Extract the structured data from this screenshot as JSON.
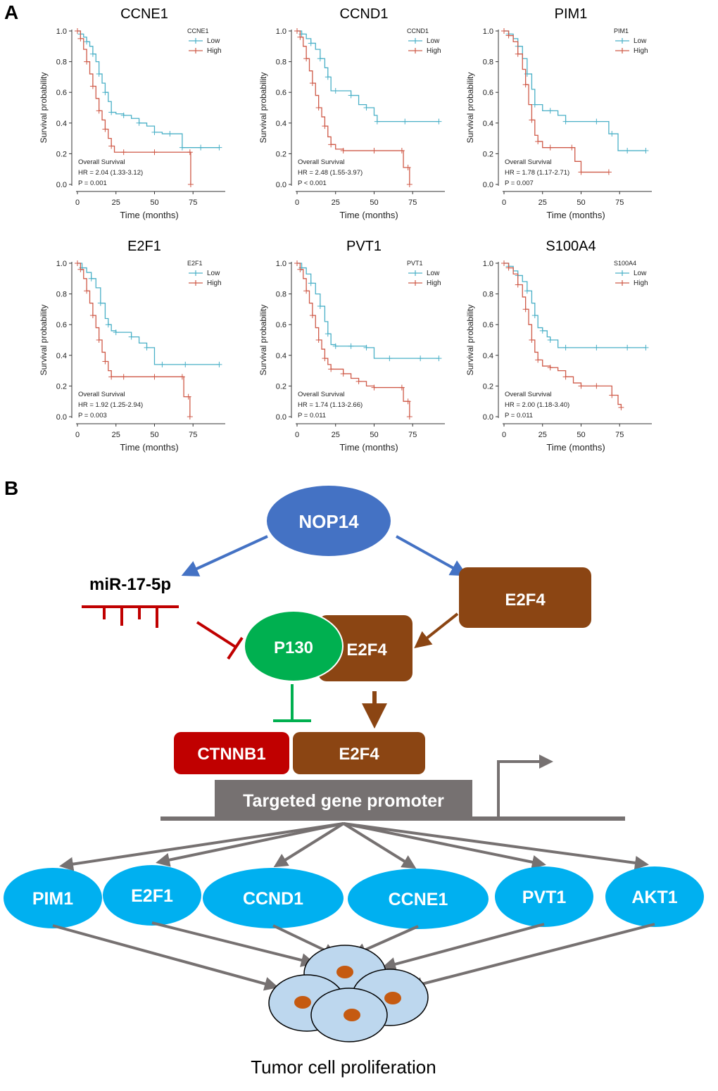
{
  "panel_labels": {
    "a": "A",
    "b": "B"
  },
  "colors": {
    "low": "#4ab0c7",
    "high": "#cf5a48",
    "axis": "#333333",
    "blue_node": "#4472c4",
    "brown": "#8b4513",
    "red": "#c00000",
    "green": "#00b050",
    "cyan": "#00b0f0",
    "gray": "#767171",
    "cell_fill": "#bdd7ee",
    "nucleus": "#c55a11"
  },
  "chart_data": [
    {
      "type": "line",
      "title": "CCNE1",
      "xlabel": "Time (months)",
      "ylabel": "Survival probability",
      "xlim": [
        0,
        95
      ],
      "ylim": [
        0,
        1.0
      ],
      "xticks": [
        "0",
        "25",
        "50",
        "75"
      ],
      "yticks": [
        "0.0",
        "0.2",
        "0.4",
        "0.6",
        "0.8",
        "1.0"
      ],
      "legend_title": "CCNE1",
      "stats": [
        "Overall Survival",
        "HR = 2.04 (1.33-3.12)",
        "P = 0.001"
      ],
      "series": [
        {
          "name": "Low",
          "x": [
            0,
            2,
            4,
            6,
            8,
            10,
            12,
            14,
            16,
            18,
            20,
            22,
            25,
            30,
            35,
            40,
            45,
            50,
            55,
            60,
            65,
            68,
            72,
            80,
            92
          ],
          "y": [
            1.0,
            0.98,
            0.96,
            0.93,
            0.9,
            0.85,
            0.8,
            0.72,
            0.66,
            0.6,
            0.54,
            0.47,
            0.46,
            0.45,
            0.43,
            0.4,
            0.38,
            0.34,
            0.33,
            0.33,
            0.33,
            0.24,
            0.24,
            0.24,
            0.24
          ]
        },
        {
          "name": "High",
          "x": [
            0,
            2,
            4,
            6,
            8,
            10,
            12,
            14,
            16,
            18,
            20,
            22,
            24,
            30,
            40,
            50,
            60,
            73,
            73.5
          ],
          "y": [
            1.0,
            0.95,
            0.88,
            0.8,
            0.72,
            0.64,
            0.56,
            0.48,
            0.42,
            0.36,
            0.3,
            0.25,
            0.21,
            0.21,
            0.21,
            0.21,
            0.21,
            0.21,
            0.0
          ]
        }
      ]
    },
    {
      "type": "line",
      "title": "CCND1",
      "xlabel": "Time (months)",
      "ylabel": "Survival probability",
      "xlim": [
        0,
        95
      ],
      "ylim": [
        0,
        1.0
      ],
      "xticks": [
        "0",
        "25",
        "50",
        "75"
      ],
      "yticks": [
        "0.0",
        "0.2",
        "0.4",
        "0.6",
        "0.8",
        "1.0"
      ],
      "legend_title": "CCND1",
      "stats": [
        "Overall Survival",
        "HR = 2.48 (1.55-3.97)",
        "P < 0.001"
      ],
      "series": [
        {
          "name": "Low",
          "x": [
            0,
            3,
            6,
            9,
            12,
            15,
            18,
            20,
            22,
            25,
            30,
            35,
            40,
            45,
            50,
            52,
            60,
            70,
            80,
            92
          ],
          "y": [
            1.0,
            0.98,
            0.95,
            0.92,
            0.88,
            0.82,
            0.76,
            0.7,
            0.61,
            0.61,
            0.61,
            0.58,
            0.52,
            0.5,
            0.45,
            0.41,
            0.41,
            0.41,
            0.41,
            0.41
          ]
        },
        {
          "name": "High",
          "x": [
            0,
            2,
            4,
            6,
            8,
            10,
            12,
            14,
            16,
            18,
            20,
            22,
            25,
            30,
            40,
            50,
            60,
            68,
            69,
            72,
            73
          ],
          "y": [
            1.0,
            0.96,
            0.9,
            0.82,
            0.74,
            0.66,
            0.58,
            0.5,
            0.44,
            0.38,
            0.31,
            0.26,
            0.23,
            0.22,
            0.22,
            0.22,
            0.22,
            0.22,
            0.11,
            0.11,
            0.0
          ]
        }
      ]
    },
    {
      "type": "line",
      "title": "PIM1",
      "xlabel": "Time (months)",
      "ylabel": "Survival probability",
      "xlim": [
        0,
        95
      ],
      "ylim": [
        0,
        1.0
      ],
      "xticks": [
        "0",
        "25",
        "50",
        "75"
      ],
      "yticks": [
        "0.0",
        "0.2",
        "0.4",
        "0.6",
        "0.8",
        "1.0"
      ],
      "legend_title": "PIM1",
      "stats": [
        "Overall Survival",
        "HR = 1.78 (1.17-2.71)",
        "P = 0.007"
      ],
      "series": [
        {
          "name": "Low",
          "x": [
            0,
            3,
            6,
            9,
            12,
            15,
            18,
            20,
            25,
            30,
            35,
            40,
            50,
            60,
            68,
            70,
            74,
            80,
            92
          ],
          "y": [
            1.0,
            0.98,
            0.95,
            0.9,
            0.82,
            0.72,
            0.62,
            0.52,
            0.48,
            0.48,
            0.45,
            0.41,
            0.41,
            0.41,
            0.33,
            0.33,
            0.22,
            0.22,
            0.22
          ]
        },
        {
          "name": "High",
          "x": [
            0,
            3,
            6,
            9,
            12,
            14,
            16,
            18,
            20,
            22,
            25,
            30,
            40,
            44,
            46,
            50,
            60,
            68
          ],
          "y": [
            1.0,
            0.97,
            0.93,
            0.85,
            0.75,
            0.65,
            0.52,
            0.42,
            0.32,
            0.28,
            0.24,
            0.24,
            0.24,
            0.24,
            0.15,
            0.08,
            0.08,
            0.08
          ]
        }
      ]
    },
    {
      "type": "line",
      "title": "E2F1",
      "xlabel": "Time (months)",
      "ylabel": "Survival probability",
      "xlim": [
        0,
        95
      ],
      "ylim": [
        0,
        1.0
      ],
      "xticks": [
        "0",
        "25",
        "50",
        "75"
      ],
      "yticks": [
        "0.0",
        "0.2",
        "0.4",
        "0.6",
        "0.8",
        "1.0"
      ],
      "legend_title": "E2F1",
      "stats": [
        "Overall Survival",
        "HR = 1.92 (1.25-2.94)",
        "P = 0.003"
      ],
      "series": [
        {
          "name": "Low",
          "x": [
            0,
            3,
            6,
            9,
            12,
            15,
            18,
            20,
            22,
            25,
            30,
            35,
            40,
            45,
            50,
            55,
            60,
            70,
            80,
            92
          ],
          "y": [
            1.0,
            0.97,
            0.94,
            0.9,
            0.84,
            0.74,
            0.64,
            0.6,
            0.56,
            0.55,
            0.55,
            0.52,
            0.48,
            0.45,
            0.34,
            0.34,
            0.34,
            0.34,
            0.34,
            0.34
          ]
        },
        {
          "name": "High",
          "x": [
            0,
            2,
            4,
            6,
            8,
            10,
            12,
            14,
            16,
            18,
            20,
            22,
            25,
            30,
            40,
            50,
            60,
            68,
            69,
            72,
            73
          ],
          "y": [
            1.0,
            0.96,
            0.9,
            0.82,
            0.74,
            0.66,
            0.58,
            0.5,
            0.42,
            0.36,
            0.3,
            0.26,
            0.26,
            0.26,
            0.26,
            0.26,
            0.26,
            0.26,
            0.13,
            0.13,
            0.0
          ]
        }
      ]
    },
    {
      "type": "line",
      "title": "PVT1",
      "xlabel": "Time (months)",
      "ylabel": "Survival probability",
      "xlim": [
        0,
        95
      ],
      "ylim": [
        0,
        1.0
      ],
      "xticks": [
        "0",
        "25",
        "50",
        "75"
      ],
      "yticks": [
        "0.0",
        "0.2",
        "0.4",
        "0.6",
        "0.8",
        "1.0"
      ],
      "legend_title": "PVT1",
      "stats": [
        "Overall Survival",
        "HR = 1.74 (1.13-2.66)",
        "P = 0.011"
      ],
      "series": [
        {
          "name": "Low",
          "x": [
            0,
            3,
            6,
            9,
            12,
            15,
            18,
            20,
            22,
            25,
            30,
            35,
            40,
            45,
            50,
            60,
            70,
            80,
            92
          ],
          "y": [
            1.0,
            0.97,
            0.93,
            0.87,
            0.8,
            0.72,
            0.62,
            0.54,
            0.47,
            0.46,
            0.46,
            0.46,
            0.46,
            0.45,
            0.38,
            0.38,
            0.38,
            0.38,
            0.38
          ]
        },
        {
          "name": "High",
          "x": [
            0,
            2,
            4,
            6,
            8,
            10,
            12,
            14,
            16,
            18,
            20,
            22,
            25,
            30,
            35,
            40,
            45,
            50,
            55,
            68,
            69,
            72,
            73
          ],
          "y": [
            1.0,
            0.96,
            0.9,
            0.82,
            0.74,
            0.66,
            0.58,
            0.5,
            0.44,
            0.38,
            0.34,
            0.31,
            0.31,
            0.28,
            0.25,
            0.23,
            0.2,
            0.19,
            0.19,
            0.19,
            0.1,
            0.1,
            0.0
          ]
        }
      ]
    },
    {
      "type": "line",
      "title": "S100A4",
      "xlabel": "Time (months)",
      "ylabel": "Survival probability",
      "xlim": [
        0,
        95
      ],
      "ylim": [
        0,
        1.0
      ],
      "xticks": [
        "0",
        "25",
        "50",
        "75"
      ],
      "yticks": [
        "0.0",
        "0.2",
        "0.4",
        "0.6",
        "0.8",
        "1.0"
      ],
      "legend_title": "S100A4",
      "stats": [
        "Overall Survival",
        "HR = 2.00 (1.18-3.40)",
        "P = 0.011"
      ],
      "series": [
        {
          "name": "Low",
          "x": [
            0,
            3,
            6,
            9,
            12,
            15,
            18,
            20,
            22,
            25,
            28,
            30,
            35,
            40,
            50,
            60,
            70,
            80,
            92
          ],
          "y": [
            1.0,
            0.98,
            0.95,
            0.92,
            0.88,
            0.82,
            0.74,
            0.66,
            0.58,
            0.56,
            0.52,
            0.5,
            0.45,
            0.45,
            0.45,
            0.45,
            0.45,
            0.45,
            0.45
          ]
        },
        {
          "name": "High",
          "x": [
            0,
            3,
            6,
            9,
            12,
            14,
            16,
            18,
            20,
            22,
            25,
            30,
            35,
            40,
            45,
            50,
            55,
            60,
            68,
            70,
            74,
            76
          ],
          "y": [
            1.0,
            0.97,
            0.93,
            0.86,
            0.78,
            0.7,
            0.6,
            0.5,
            0.42,
            0.37,
            0.33,
            0.32,
            0.3,
            0.26,
            0.22,
            0.2,
            0.2,
            0.2,
            0.2,
            0.14,
            0.08,
            0.06
          ]
        }
      ]
    }
  ],
  "diagram": {
    "nop14": "NOP14",
    "mirna": "miR-17-5p",
    "e2f4_top": "E2F4",
    "p130": "P130",
    "e2f4_complex": "E2F4",
    "ctnnb1": "CTNNB1",
    "e2f4_bound": "E2F4",
    "promoter": "Targeted gene promoter",
    "targets": [
      "PIM1",
      "E2F1",
      "CCND1",
      "CCNE1",
      "PVT1",
      "AKT1"
    ],
    "outcome": "Tumor cell proliferation"
  }
}
